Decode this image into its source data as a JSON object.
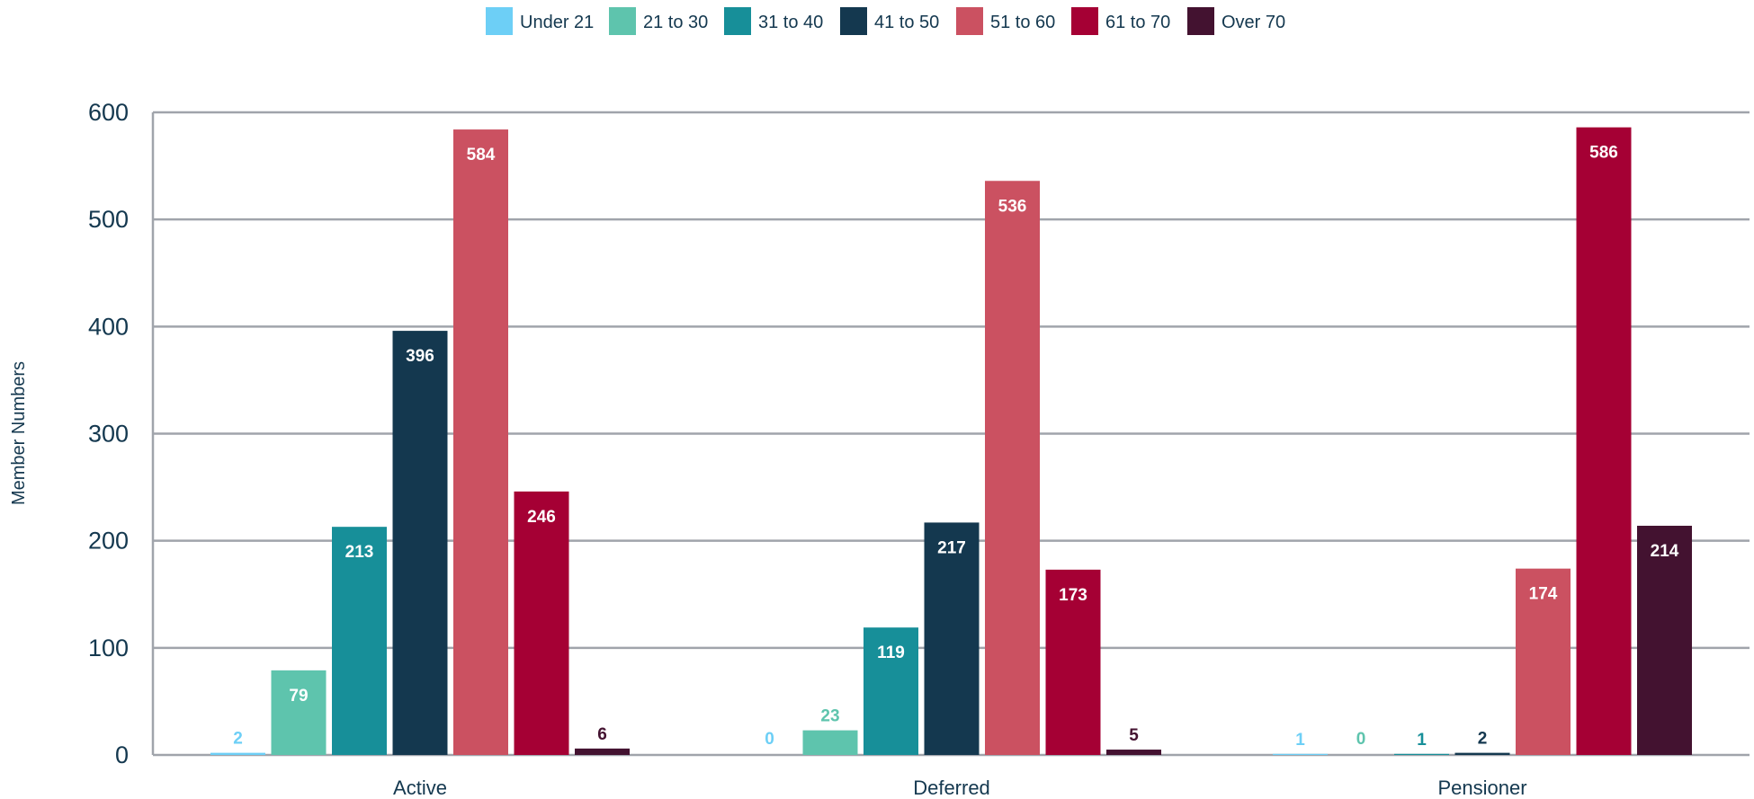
{
  "chart_data": {
    "type": "bar",
    "title": "",
    "xlabel": "",
    "ylabel": "Member Numbers",
    "ylim": [
      0,
      600
    ],
    "yticks": [
      0,
      100,
      200,
      300,
      400,
      500,
      600
    ],
    "grid": true,
    "legend_position": "top-center",
    "categories": [
      "Active",
      "Deferred",
      "Pensioner"
    ],
    "series": [
      {
        "name": "Under 21",
        "color": "#6dcff6",
        "values": [
          2,
          0,
          1
        ]
      },
      {
        "name": "21 to 30",
        "color": "#5ec4ad",
        "values": [
          79,
          23,
          0
        ]
      },
      {
        "name": "31 to 40",
        "color": "#178f99",
        "values": [
          213,
          119,
          1
        ]
      },
      {
        "name": "41 to 50",
        "color": "#14384f",
        "values": [
          396,
          217,
          2
        ]
      },
      {
        "name": "51 to 60",
        "color": "#cb5161",
        "values": [
          584,
          536,
          174
        ]
      },
      {
        "name": "61 to 70",
        "color": "#a50034",
        "values": [
          246,
          173,
          586
        ]
      },
      {
        "name": "Over 70",
        "color": "#431230",
        "values": [
          6,
          5,
          214
        ]
      }
    ],
    "gridline_color": "#a0a4ab"
  }
}
